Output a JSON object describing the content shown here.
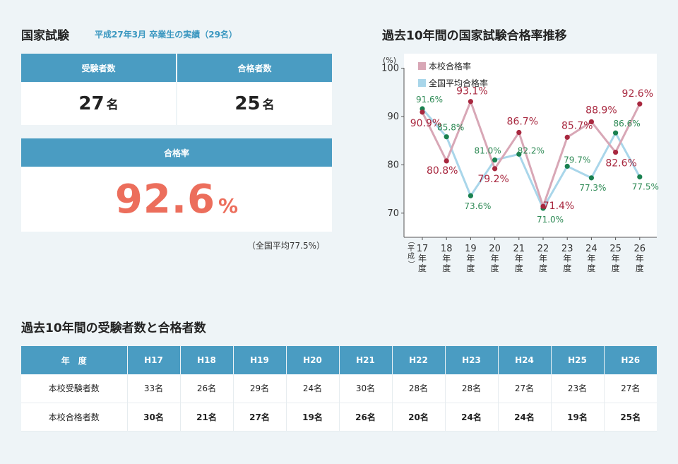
{
  "exam": {
    "title": "国家試験",
    "subtitle": "平成27年3月 卒業生の実績（29名）",
    "examinees_label": "受験者数",
    "examinees_value": "27",
    "examinees_unit": "名",
    "passers_label": "合格者数",
    "passers_value": "25",
    "passers_unit": "名",
    "rate_label": "合格率",
    "rate_value": "92.6",
    "rate_unit": "%",
    "national_note": "（全国平均77.5%）"
  },
  "chart_section": {
    "title": "過去10年間の国家試験合格率推移"
  },
  "chart_data": {
    "type": "line",
    "ylabel": "(%)",
    "ylim": [
      65,
      103
    ],
    "yticks": [
      "70",
      "80",
      "90",
      "100"
    ],
    "era_label": "（平成）",
    "categories": [
      "17",
      "18",
      "19",
      "20",
      "21",
      "22",
      "23",
      "24",
      "25",
      "26"
    ],
    "category_suffix": "年度",
    "series": [
      {
        "name": "本校合格率",
        "color": "#d8a7b6",
        "marker_color": "#a8283f",
        "label_color": "#a8283f",
        "values": [
          90.9,
          80.8,
          93.1,
          79.2,
          86.7,
          71.4,
          85.7,
          88.9,
          82.6,
          92.6
        ],
        "labels": [
          "90.9%",
          "80.8%",
          "93.1%",
          "79.2%",
          "86.7%",
          "71.4%",
          "85.7%",
          "88.9%",
          "82.6%",
          "92.6%"
        ]
      },
      {
        "name": "全国平均合格率",
        "color": "#a9d6ea",
        "marker_color": "#1a8150",
        "label_color": "#2e8a55",
        "values": [
          91.6,
          85.8,
          73.6,
          81.0,
          82.2,
          71.0,
          79.7,
          77.3,
          86.6,
          77.5
        ],
        "labels": [
          "91.6%",
          "85.8%",
          "73.6%",
          "81.0%",
          "82.2%",
          "71.0%",
          "79.7%",
          "77.3%",
          "86.6%",
          "77.5%"
        ]
      }
    ]
  },
  "history": {
    "title": "過去10年間の受験者数と合格者数",
    "header": [
      "年　度",
      "H17",
      "H18",
      "H19",
      "H20",
      "H21",
      "H22",
      "H23",
      "H24",
      "H25",
      "H26"
    ],
    "rows": [
      {
        "label": "本校受験者数",
        "cells": [
          "33名",
          "26名",
          "29名",
          "24名",
          "30名",
          "28名",
          "28名",
          "27名",
          "23名",
          "27名"
        ]
      },
      {
        "label": "本校合格者数",
        "cells": [
          "30名",
          "21名",
          "27名",
          "19名",
          "26名",
          "20名",
          "24名",
          "24名",
          "19名",
          "25名"
        ]
      }
    ]
  }
}
